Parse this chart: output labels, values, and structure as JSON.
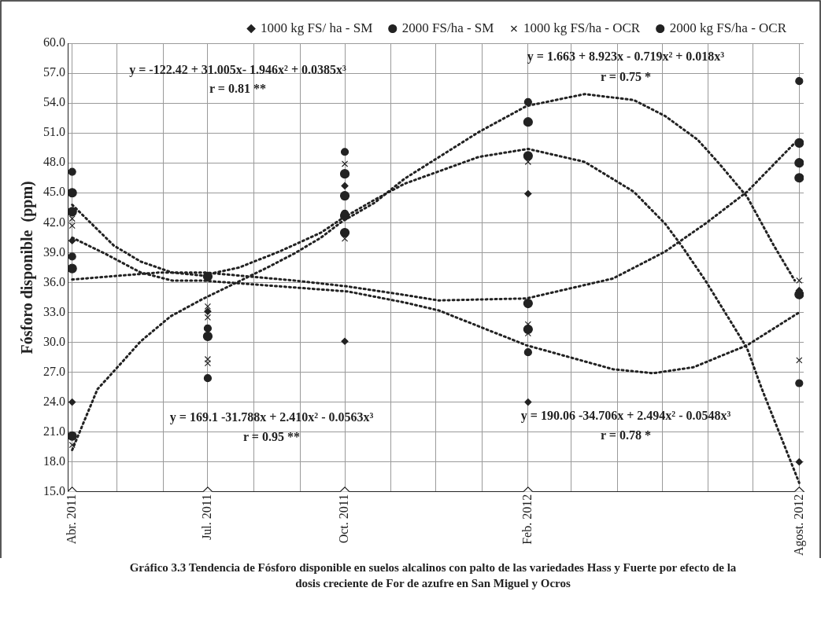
{
  "chart_data": {
    "type": "scatter",
    "title": "Gráfico 3.3 Tendencia de Fósforo disponible en suelos alcalinos con palto de las variedades Hass y Fuerte por efecto de la dosis creciente de For de azufre en San Miguel y Ocros",
    "ylabel": "Fósforo disponible  (ppm)",
    "xlim": [
      "2011-03-29",
      "2012-08-04"
    ],
    "xticks": [
      {
        "value": "2011-04",
        "label": "Abr. 2011"
      },
      {
        "value": "2011-05",
        "label": null
      },
      {
        "value": "2011-06",
        "label": null
      },
      {
        "value": "2011-07",
        "label": "Jul. 2011"
      },
      {
        "value": "2011-08",
        "label": null
      },
      {
        "value": "2011-09",
        "label": null
      },
      {
        "value": "2011-10",
        "label": "Oct. 2011"
      },
      {
        "value": "2011-11",
        "label": null
      },
      {
        "value": "2011-12",
        "label": null
      },
      {
        "value": "2012-01",
        "label": null
      },
      {
        "value": "2012-02",
        "label": "Feb. 2012"
      },
      {
        "value": "2012-03",
        "label": null
      },
      {
        "value": "2012-04",
        "label": null
      },
      {
        "value": "2012-05",
        "label": null
      },
      {
        "value": "2012-06",
        "label": null
      },
      {
        "value": "2012-07",
        "label": null
      },
      {
        "value": "2012-08",
        "label": "Agost. 2012"
      }
    ],
    "ylim": [
      15,
      60
    ],
    "yticks": [
      {
        "value": 15,
        "label": "15.0"
      },
      {
        "value": 18,
        "label": "18.0"
      },
      {
        "value": 21,
        "label": "21.0"
      },
      {
        "value": 24,
        "label": "24.0"
      },
      {
        "value": 27,
        "label": "27.0"
      },
      {
        "value": 30,
        "label": "30.0"
      },
      {
        "value": 33,
        "label": "33.0"
      },
      {
        "value": 36,
        "label": "36.0"
      },
      {
        "value": 39,
        "label": "39.0"
      },
      {
        "value": 42,
        "label": "42.0"
      },
      {
        "value": 45,
        "label": "45.0"
      },
      {
        "value": 48,
        "label": "48.0"
      },
      {
        "value": 51,
        "label": "51.0"
      },
      {
        "value": 54,
        "label": "54.0"
      },
      {
        "value": 57,
        "label": "57.0"
      },
      {
        "value": 60,
        "label": "60.0"
      }
    ],
    "grid": true,
    "legend": "top",
    "series": [
      {
        "name": "1000 kg FS/ ha - SM",
        "color": "#222222",
        "marker": "diamond",
        "x": [
          "2011-04",
          "2011-04",
          "2011-07",
          "2011-10",
          "2011-10",
          "2012-02",
          "2012-02",
          "2012-08",
          "2012-08"
        ],
        "values": [
          24.0,
          40.2,
          33.1,
          30.1,
          45.7,
          24.0,
          44.9,
          18.0,
          35.2
        ]
      },
      {
        "name": "2000 FS/ha - SM",
        "color": "#222222",
        "marker": "circle",
        "x": [
          "2011-04",
          "2011-04",
          "2011-07",
          "2011-07",
          "2011-10",
          "2011-10",
          "2012-02",
          "2012-02",
          "2012-08",
          "2012-08"
        ],
        "values": [
          47.1,
          38.6,
          26.4,
          31.4,
          49.1,
          42.9,
          54.1,
          29.0,
          56.2,
          25.9
        ]
      },
      {
        "name": "1000 kg FS/ha - OCR",
        "color": "#222222",
        "marker": "cross",
        "x": [
          "2011-04",
          "2011-04",
          "2011-04",
          "2011-07",
          "2011-07",
          "2011-07",
          "2011-07",
          "2011-10",
          "2011-10",
          "2012-02",
          "2012-02",
          "2012-02",
          "2012-08",
          "2012-08"
        ],
        "values": [
          42.4,
          41.7,
          19.7,
          33.6,
          32.5,
          28.3,
          27.9,
          47.9,
          40.4,
          48.1,
          31.8,
          30.9,
          36.2,
          28.2
        ]
      },
      {
        "name": "2000 kg FS/ha - OCR",
        "color": "#222222",
        "marker": "circle",
        "x": [
          "2011-04",
          "2011-04",
          "2011-04",
          "2011-04",
          "2011-07",
          "2011-07",
          "2011-10",
          "2011-10",
          "2011-10",
          "2011-10",
          "2012-02",
          "2012-02",
          "2012-02",
          "2012-02",
          "2012-08",
          "2012-08",
          "2012-08",
          "2012-08"
        ],
        "values": [
          45.0,
          43.1,
          37.4,
          20.6,
          36.6,
          30.6,
          46.9,
          44.7,
          42.7,
          41.0,
          52.1,
          48.7,
          33.9,
          31.3,
          50.0,
          48.0,
          46.5,
          34.8
        ]
      },
      {
        "color": "#222222",
        "marker": "diamond",
        "x": [
          "2011-04",
          "2011-07",
          "2011-10",
          "2012-02",
          "2012-08"
        ],
        "values": [
          15,
          15,
          15,
          15,
          15
        ]
      },
      {
        "type": "line",
        "color": "#222222",
        "line_style": "dotted",
        "marker": "none",
        "x": [
          "2011-04",
          "2011-04-18",
          "2011-04-29",
          "2011-05-17",
          "2011-06-06",
          "2011-06-27",
          "2011-08-10",
          "2011-08-28",
          "2011-09-15",
          "2011-09-29",
          "2011-10-21",
          "2011-11-10",
          "2011-12-30",
          "2012-01-31",
          "2012-03-10",
          "2012-04-12",
          "2012-05-03",
          "2012-05-25",
          "2012-06-09",
          "2012-06-27",
          "2012-07-15",
          "2012-07-29"
        ],
        "values": [
          19.2,
          25.3,
          27.1,
          30.1,
          32.6,
          34.3,
          37.5,
          38.9,
          40.5,
          42.1,
          44.0,
          46.4,
          51.1,
          53.7,
          54.9,
          54.3,
          52.7,
          50.3,
          47.8,
          44.6,
          39.7,
          36.2
        ]
      },
      {
        "type": "line",
        "color": "#222222",
        "line_style": "dotted",
        "marker": "none",
        "x": [
          "2011-04",
          "2011-04-14",
          "2011-04-29",
          "2011-05-17",
          "2011-06-07",
          "2011-06-27",
          "2011-07-22",
          "2011-08-18",
          "2011-09-15",
          "2011-09-29",
          "2011-10-21",
          "2011-11-10",
          "2011-12-30",
          "2012-02",
          "2012-03-10",
          "2012-04-12",
          "2012-05-03",
          "2012-05-14",
          "2012-05-30",
          "2012-06-18",
          "2012-06-27",
          "2012-07-07",
          "2012-08"
        ],
        "values": [
          43.8,
          41.9,
          39.7,
          38.1,
          37.0,
          36.7,
          37.5,
          39.1,
          41.0,
          42.4,
          44.3,
          45.9,
          48.6,
          49.4,
          48.1,
          45.1,
          41.9,
          39.7,
          36.2,
          31.6,
          29.4,
          25.3,
          15.9
        ]
      },
      {
        "type": "line",
        "color": "#222222",
        "line_style": "dotted",
        "marker": "none",
        "x": [
          "2011-04",
          "2011-04-23",
          "2011-05-17",
          "2011-06-07",
          "2011-06-27",
          "2011-10-03",
          "2011-11-10",
          "2011-12-03",
          "2012-01-31",
          "2012-03-29",
          "2012-04-25",
          "2012-05-22",
          "2012-06-27",
          "2012-08"
        ],
        "values": [
          40.5,
          38.9,
          37.0,
          36.2,
          36.2,
          35.1,
          34.0,
          33.2,
          29.7,
          27.3,
          26.9,
          27.5,
          29.7,
          33.0
        ]
      },
      {
        "type": "line",
        "color": "#222222",
        "line_style": "dotted",
        "marker": "none",
        "x": [
          "2011-04",
          "2011-05-29",
          "2011-06-29",
          "2011-08-28",
          "2011-10-03",
          "2011-11-08",
          "2011-12-03",
          "2012-01-31",
          "2012-03-29",
          "2012-05-03",
          "2012-05-30",
          "2012-06-27",
          "2012-07-29"
        ],
        "values": [
          36.3,
          37.0,
          37.0,
          36.2,
          35.6,
          34.8,
          34.2,
          34.4,
          36.4,
          39.1,
          41.9,
          45.1,
          50.0
        ]
      }
    ],
    "annotations": [
      "y = -122.42 + 31.005x- 1.946x² + 0.0385x³",
      "r = 0.81 **",
      "y = 1.663 + 8.923x - 0.719x² + 0.018x³",
      "r = 0.75 *",
      "y = 169.1 -31.788x + 2.410x² - 0.0563x³",
      "r = 0.95 **",
      "y = 190.06 -34.706x + 2.494x² - 0.0548x³",
      "r = 0.78 *"
    ]
  }
}
